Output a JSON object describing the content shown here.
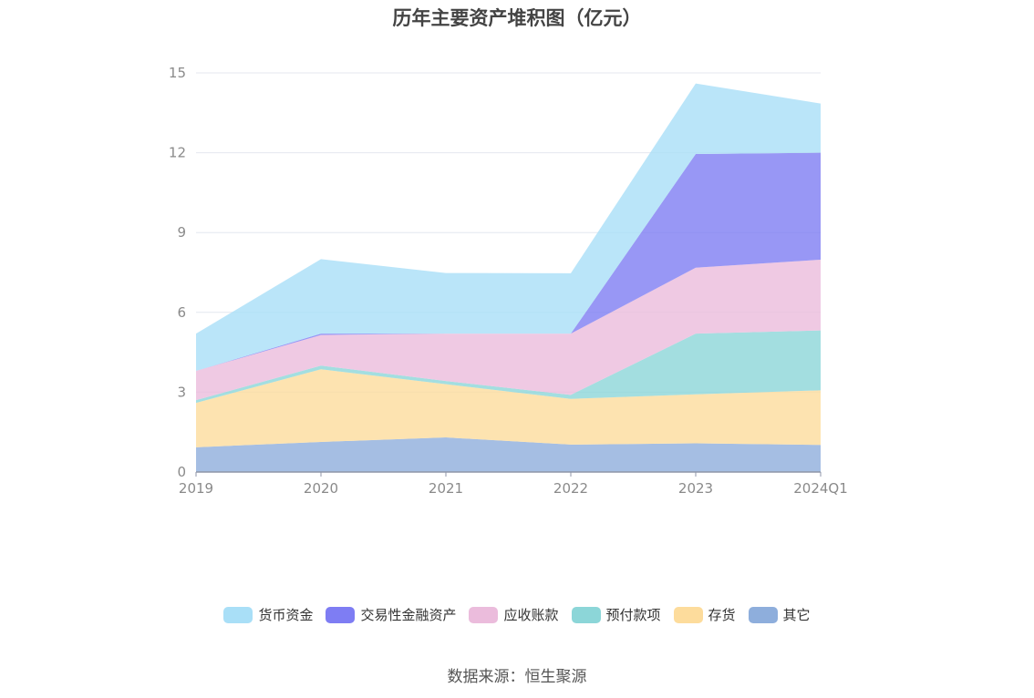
{
  "title": "历年主要资产堆积图（亿元）",
  "source": "数据来源：恒生聚源",
  "chart_data": {
    "type": "area",
    "stacked": true,
    "title": "历年主要资产堆积图（亿元）",
    "xlabel": "",
    "ylabel": "",
    "categories": [
      "2019",
      "2020",
      "2021",
      "2022",
      "2023",
      "2024Q1"
    ],
    "ylim": [
      0,
      15
    ],
    "yticks": [
      0,
      3,
      6,
      9,
      12,
      15
    ],
    "grid": true,
    "legend_position": "bottom",
    "series": [
      {
        "name": "其它",
        "color": "#8eaedc",
        "values": [
          0.93,
          1.13,
          1.3,
          1.03,
          1.08,
          1.02
        ]
      },
      {
        "name": "存货",
        "color": "#fddc9c",
        "values": [
          1.67,
          2.73,
          2.0,
          1.72,
          1.84,
          2.05
        ]
      },
      {
        "name": "预付款项",
        "color": "#8cd6d8",
        "values": [
          0.1,
          0.14,
          0.12,
          0.15,
          2.28,
          2.25
        ]
      },
      {
        "name": "应收账款",
        "color": "#ebbcdc",
        "values": [
          1.1,
          1.15,
          1.78,
          2.3,
          2.48,
          2.66
        ]
      },
      {
        "name": "交易性金融资产",
        "color": "#7e7df3",
        "values": [
          0.0,
          0.05,
          0.0,
          0.0,
          4.27,
          4.02
        ]
      },
      {
        "name": "货币资金",
        "color": "#a9dff7",
        "values": [
          1.4,
          2.8,
          2.28,
          2.27,
          2.65,
          1.85
        ]
      }
    ],
    "legend_order": [
      "货币资金",
      "交易性金融资产",
      "应收账款",
      "预付款项",
      "存货",
      "其它"
    ]
  }
}
